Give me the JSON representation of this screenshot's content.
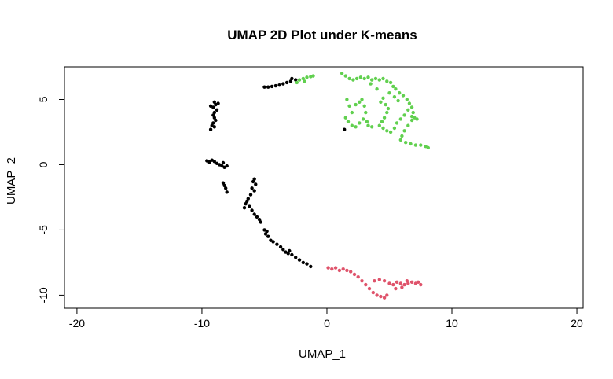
{
  "chart_data": {
    "type": "scatter",
    "title": "UMAP 2D Plot under K-means",
    "xlabel": "UMAP_1",
    "ylabel": "UMAP_2",
    "xlim": [
      -21,
      20.5
    ],
    "ylim": [
      -11,
      7.5
    ],
    "xticks": [
      -20,
      -10,
      0,
      10,
      20
    ],
    "yticks": [
      -10,
      -5,
      0,
      5
    ],
    "grid": false,
    "legend": "none",
    "series": [
      {
        "color": "#000000",
        "points": [
          [
            -2.8,
            6.6
          ],
          [
            -2.9,
            6.4
          ],
          [
            -3.2,
            6.3
          ],
          [
            -3.5,
            6.2
          ],
          [
            -3.8,
            6.1
          ],
          [
            -4.1,
            6.05
          ],
          [
            -4.4,
            6.0
          ],
          [
            -4.7,
            5.95
          ],
          [
            -5.0,
            5.95
          ],
          [
            -2.5,
            6.5
          ],
          [
            -9.0,
            4.8
          ],
          [
            -8.9,
            4.6
          ],
          [
            -9.1,
            4.4
          ],
          [
            -8.8,
            4.2
          ],
          [
            -9.0,
            4.0
          ],
          [
            -9.1,
            3.8
          ],
          [
            -9.0,
            3.6
          ],
          [
            -8.9,
            3.4
          ],
          [
            -9.1,
            3.2
          ],
          [
            -9.2,
            3.0
          ],
          [
            -9.0,
            2.9
          ],
          [
            -9.3,
            2.7
          ],
          [
            -8.7,
            4.7
          ],
          [
            -9.3,
            4.5
          ],
          [
            -9.6,
            0.3
          ],
          [
            -9.4,
            0.2
          ],
          [
            -9.2,
            0.35
          ],
          [
            -9.0,
            0.25
          ],
          [
            -8.8,
            0.1
          ],
          [
            -8.6,
            0.0
          ],
          [
            -8.4,
            -0.1
          ],
          [
            -8.2,
            -0.2
          ],
          [
            -8.0,
            -0.1
          ],
          [
            -8.3,
            0.15
          ],
          [
            -8.3,
            -1.4
          ],
          [
            -8.2,
            -1.6
          ],
          [
            -8.1,
            -1.8
          ],
          [
            -8.0,
            -2.1
          ],
          [
            -5.8,
            -1.1
          ],
          [
            -5.9,
            -1.3
          ],
          [
            -5.7,
            -1.5
          ],
          [
            -6.0,
            -1.8
          ],
          [
            -5.8,
            -2.0
          ],
          [
            -6.1,
            -2.3
          ],
          [
            -6.3,
            -2.6
          ],
          [
            -6.5,
            -3.0
          ],
          [
            -6.2,
            -3.2
          ],
          [
            -6.0,
            -3.5
          ],
          [
            -5.8,
            -3.8
          ],
          [
            -5.6,
            -4.0
          ],
          [
            -5.4,
            -4.2
          ],
          [
            -5.3,
            -4.4
          ],
          [
            -6.6,
            -3.3
          ],
          [
            -6.4,
            -2.8
          ],
          [
            -5.0,
            -5.0
          ],
          [
            -4.9,
            -5.3
          ],
          [
            -4.7,
            -5.5
          ],
          [
            -4.5,
            -5.8
          ],
          [
            -4.3,
            -5.9
          ],
          [
            -4.0,
            -6.1
          ],
          [
            -3.7,
            -6.3
          ],
          [
            -3.5,
            -6.5
          ],
          [
            -3.3,
            -6.7
          ],
          [
            -3.1,
            -6.8
          ],
          [
            -2.8,
            -6.9
          ],
          [
            -2.5,
            -7.1
          ],
          [
            -2.2,
            -7.3
          ],
          [
            -1.9,
            -7.5
          ],
          [
            -1.6,
            -7.6
          ],
          [
            -1.3,
            -7.8
          ],
          [
            -4.8,
            -5.1
          ],
          [
            -3.0,
            -6.6
          ],
          [
            1.4,
            2.7
          ]
        ]
      },
      {
        "color": "#61D04F",
        "points": [
          [
            -2.2,
            6.5
          ],
          [
            -1.9,
            6.6
          ],
          [
            -1.6,
            6.7
          ],
          [
            -1.3,
            6.75
          ],
          [
            -1.1,
            6.8
          ],
          [
            -2.4,
            6.3
          ],
          [
            -1.8,
            6.4
          ],
          [
            1.2,
            7.0
          ],
          [
            1.5,
            6.8
          ],
          [
            1.8,
            6.6
          ],
          [
            2.1,
            6.5
          ],
          [
            2.4,
            6.6
          ],
          [
            2.7,
            6.7
          ],
          [
            3.0,
            6.6
          ],
          [
            3.3,
            6.7
          ],
          [
            3.6,
            6.5
          ],
          [
            3.9,
            6.6
          ],
          [
            4.2,
            6.5
          ],
          [
            4.5,
            6.6
          ],
          [
            4.8,
            6.4
          ],
          [
            5.1,
            6.3
          ],
          [
            5.3,
            6.0
          ],
          [
            5.5,
            5.8
          ],
          [
            5.8,
            5.5
          ],
          [
            6.1,
            5.3
          ],
          [
            6.4,
            5.0
          ],
          [
            6.6,
            4.7
          ],
          [
            6.8,
            4.4
          ],
          [
            6.9,
            4.0
          ],
          [
            7.0,
            3.6
          ],
          [
            6.8,
            3.4
          ],
          [
            6.5,
            3.0
          ],
          [
            6.2,
            2.6
          ],
          [
            6.0,
            2.2
          ],
          [
            5.9,
            1.9
          ],
          [
            6.3,
            1.7
          ],
          [
            6.7,
            1.6
          ],
          [
            7.1,
            1.5
          ],
          [
            7.5,
            1.5
          ],
          [
            7.9,
            1.4
          ],
          [
            8.1,
            1.3
          ],
          [
            1.6,
            5.0
          ],
          [
            1.8,
            4.5
          ],
          [
            2.0,
            4.0
          ],
          [
            2.3,
            4.6
          ],
          [
            2.6,
            4.8
          ],
          [
            2.8,
            5.0
          ],
          [
            3.0,
            4.5
          ],
          [
            3.1,
            4.0
          ],
          [
            2.9,
            3.5
          ],
          [
            2.6,
            3.2
          ],
          [
            2.3,
            2.9
          ],
          [
            2.0,
            3.0
          ],
          [
            1.7,
            3.3
          ],
          [
            1.5,
            3.6
          ],
          [
            3.3,
            3.0
          ],
          [
            3.6,
            2.9
          ],
          [
            3.2,
            3.3
          ],
          [
            4.3,
            4.8
          ],
          [
            4.5,
            5.1
          ],
          [
            4.7,
            4.6
          ],
          [
            4.9,
            4.3
          ],
          [
            4.8,
            4.0
          ],
          [
            4.6,
            3.6
          ],
          [
            4.4,
            3.3
          ],
          [
            4.2,
            3.0
          ],
          [
            4.5,
            2.8
          ],
          [
            4.8,
            2.6
          ],
          [
            5.1,
            2.5
          ],
          [
            5.4,
            2.8
          ],
          [
            5.6,
            3.2
          ],
          [
            5.9,
            3.5
          ],
          [
            6.2,
            3.8
          ],
          [
            6.5,
            4.2
          ],
          [
            5.7,
            4.9
          ],
          [
            5.4,
            5.2
          ],
          [
            6.8,
            3.7
          ],
          [
            7.2,
            3.5
          ],
          [
            5.0,
            5.5
          ],
          [
            4.0,
            5.8
          ],
          [
            3.5,
            6.2
          ]
        ]
      },
      {
        "color": "#DF536B",
        "points": [
          [
            0.1,
            -7.9
          ],
          [
            0.4,
            -8.0
          ],
          [
            0.7,
            -7.9
          ],
          [
            1.0,
            -8.1
          ],
          [
            1.3,
            -8.0
          ],
          [
            1.6,
            -8.1
          ],
          [
            1.9,
            -8.2
          ],
          [
            2.2,
            -8.4
          ],
          [
            2.5,
            -8.6
          ],
          [
            2.8,
            -8.9
          ],
          [
            3.1,
            -9.2
          ],
          [
            3.4,
            -9.5
          ],
          [
            3.7,
            -9.8
          ],
          [
            4.0,
            -10.0
          ],
          [
            4.3,
            -10.1
          ],
          [
            4.6,
            -10.2
          ],
          [
            4.8,
            -10.0
          ],
          [
            3.8,
            -8.9
          ],
          [
            4.2,
            -8.8
          ],
          [
            4.6,
            -8.9
          ],
          [
            5.0,
            -9.1
          ],
          [
            5.3,
            -9.2
          ],
          [
            5.6,
            -9.0
          ],
          [
            5.9,
            -9.1
          ],
          [
            6.2,
            -9.2
          ],
          [
            6.5,
            -9.1
          ],
          [
            6.8,
            -9.0
          ],
          [
            7.1,
            -9.1
          ],
          [
            7.3,
            -9.0
          ],
          [
            7.5,
            -9.2
          ],
          [
            6.0,
            -9.4
          ],
          [
            5.5,
            -9.5
          ],
          [
            6.4,
            -8.9
          ]
        ]
      }
    ]
  }
}
